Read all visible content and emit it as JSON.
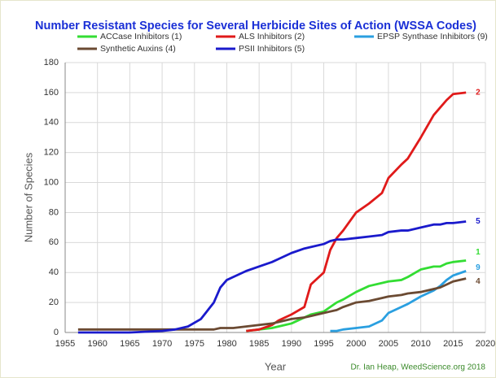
{
  "chart_data": {
    "type": "line",
    "title": "Number Resistant Species for Several Herbicide Sites of Action (WSSA Codes)",
    "xlabel": "Year",
    "ylabel": "Number of Species",
    "credit": "Dr. Ian Heap, WeedScience.org 2018",
    "x": [
      1957,
      1960,
      1965,
      1970,
      1972,
      1974,
      1976,
      1978,
      1979,
      1980,
      1981,
      1983,
      1985,
      1987,
      1988,
      1990,
      1992,
      1993,
      1995,
      1996,
      1997,
      1998,
      2000,
      2002,
      2004,
      2005,
      2007,
      2008,
      2010,
      2012,
      2013,
      2014,
      2015,
      2017
    ],
    "series": [
      {
        "name": "ACCase Inhibitors (1)",
        "color": "#33dd33",
        "end_label": "1",
        "values": [
          null,
          null,
          null,
          null,
          null,
          null,
          null,
          null,
          null,
          null,
          null,
          1,
          2,
          3,
          4,
          6,
          10,
          12,
          14,
          17,
          20,
          22,
          27,
          31,
          33,
          34,
          35,
          37,
          42,
          44,
          44,
          46,
          47,
          48
        ]
      },
      {
        "name": "ALS Inhibitors (2)",
        "color": "#e01a1a",
        "end_label": "2",
        "values": [
          null,
          null,
          null,
          null,
          null,
          null,
          null,
          null,
          null,
          null,
          null,
          1,
          2,
          5,
          8,
          12,
          17,
          32,
          40,
          55,
          63,
          68,
          80,
          86,
          93,
          103,
          112,
          116,
          130,
          145,
          150,
          155,
          159,
          160
        ]
      },
      {
        "name": "EPSP Synthase Inhibitors (9)",
        "color": "#2a9fe0",
        "end_label": "9",
        "values": [
          null,
          null,
          null,
          null,
          null,
          null,
          null,
          null,
          null,
          null,
          null,
          null,
          null,
          null,
          null,
          null,
          null,
          null,
          null,
          1,
          1,
          2,
          3,
          4,
          8,
          13,
          17,
          19,
          24,
          28,
          31,
          35,
          38,
          41
        ]
      },
      {
        "name": "Synthetic Auxins (4)",
        "color": "#6b4a32",
        "end_label": "4",
        "values": [
          2,
          2,
          2,
          2,
          2,
          2,
          2,
          2,
          3,
          3,
          3,
          4,
          5,
          6,
          7,
          9,
          10,
          11,
          13,
          14,
          15,
          17,
          20,
          21,
          23,
          24,
          25,
          26,
          27,
          29,
          30,
          32,
          34,
          36
        ]
      },
      {
        "name": "PSII Inhibitors (5)",
        "color": "#1a1acc",
        "end_label": "5",
        "values": [
          0,
          0,
          0,
          1,
          2,
          4,
          9,
          20,
          30,
          35,
          37,
          41,
          44,
          47,
          49,
          53,
          56,
          57,
          59,
          61,
          62,
          62,
          63,
          64,
          65,
          67,
          68,
          68,
          70,
          72,
          72,
          73,
          73,
          74
        ]
      }
    ],
    "xlim": [
      1955,
      2020
    ],
    "xticks": [
      1955,
      1960,
      1965,
      1970,
      1975,
      1980,
      1985,
      1990,
      1995,
      2000,
      2005,
      2010,
      2015,
      2020
    ],
    "ylim": [
      0,
      180
    ],
    "yticks": [
      0,
      20,
      40,
      60,
      80,
      100,
      120,
      140,
      160,
      180
    ],
    "grid": true
  }
}
